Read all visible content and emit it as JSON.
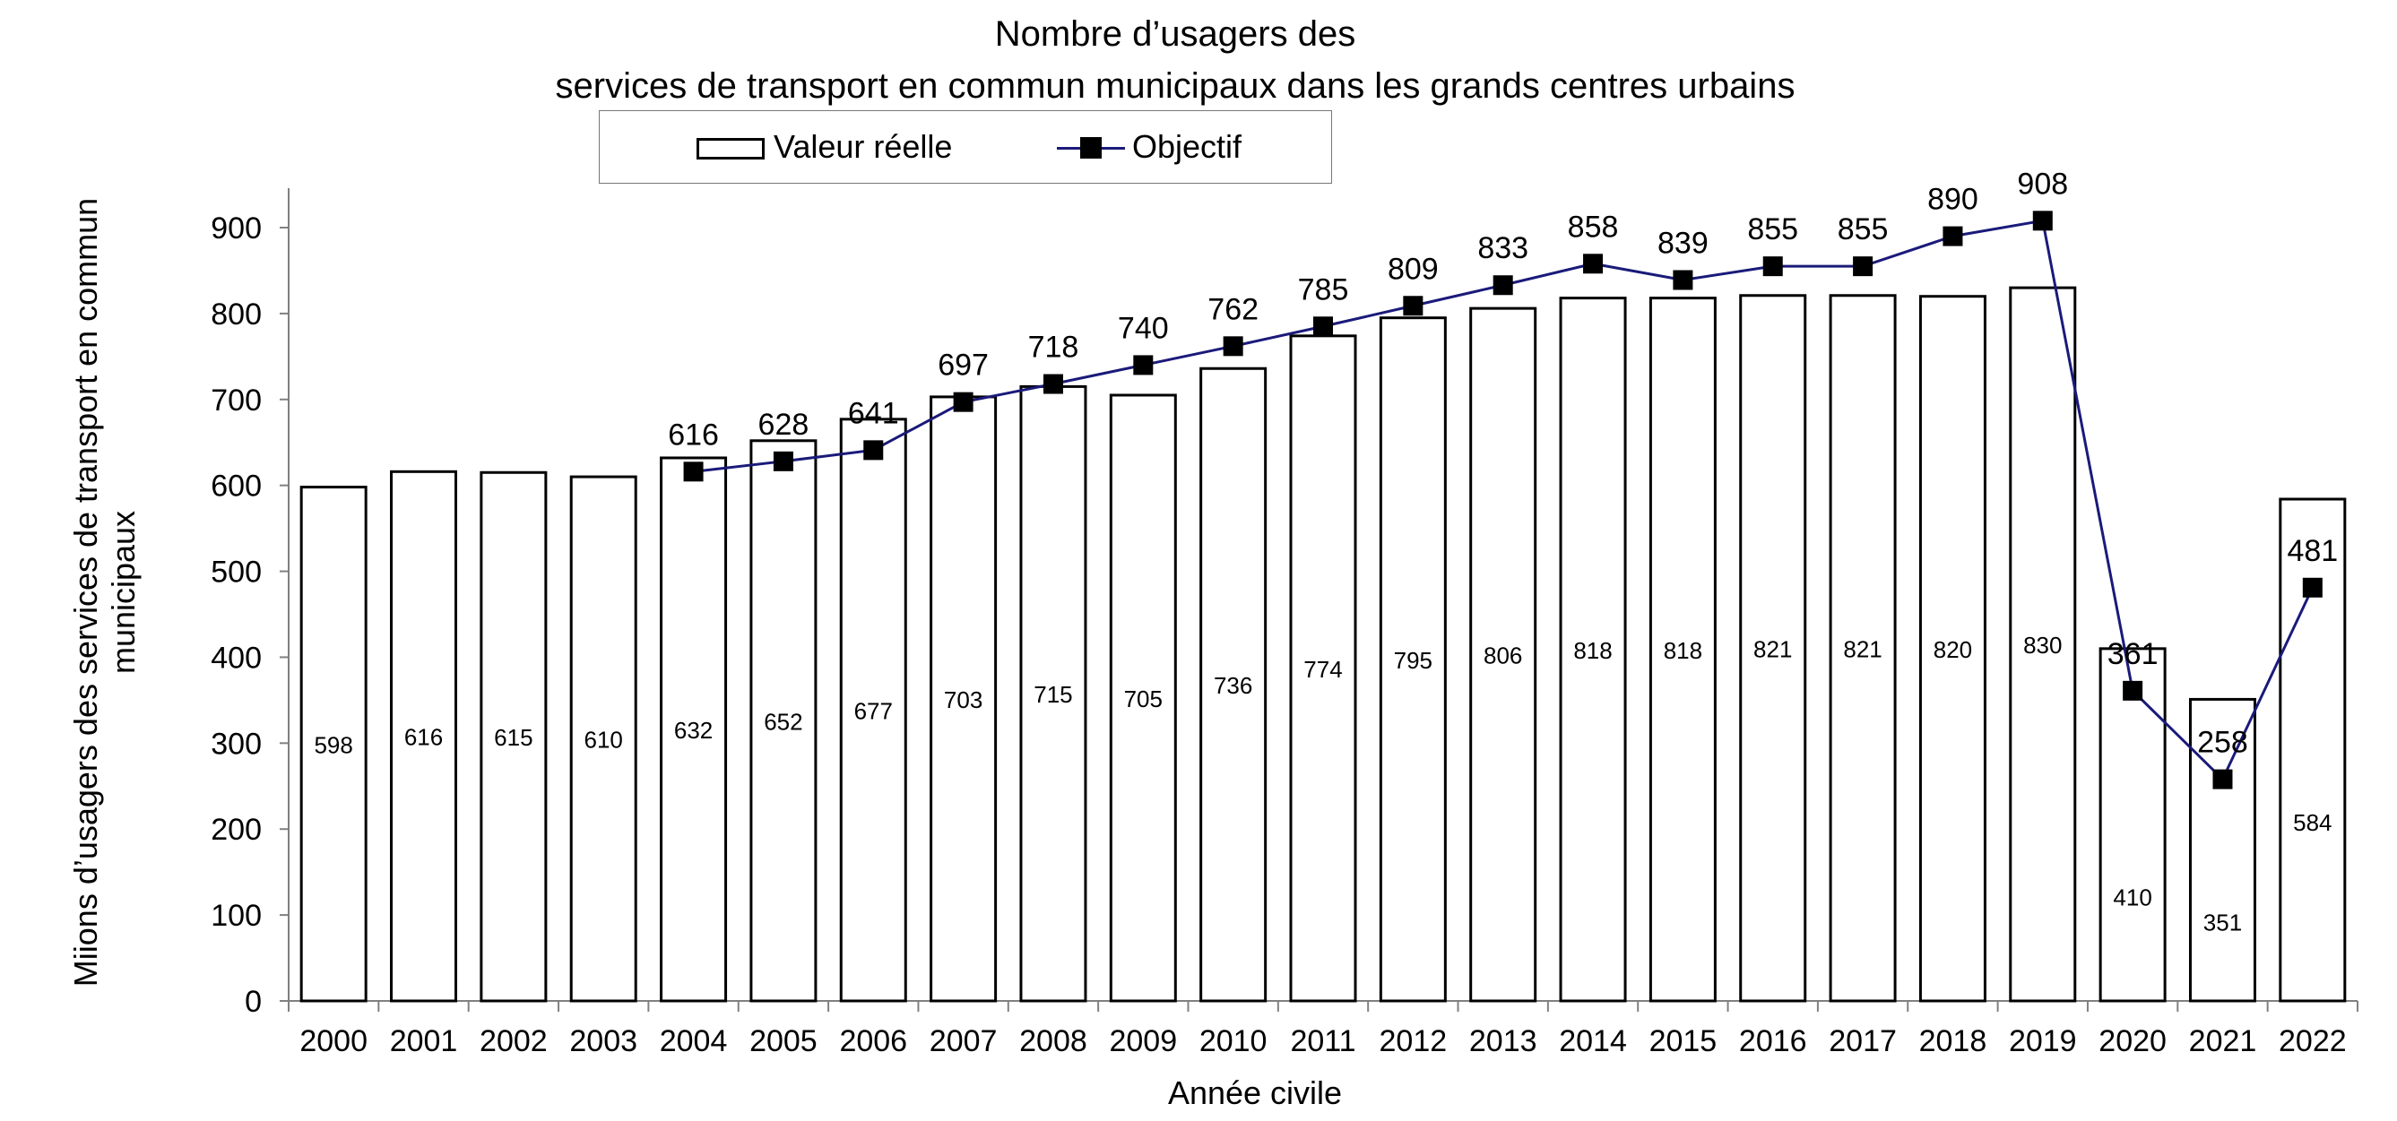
{
  "chart_data": {
    "type": "bar",
    "title_line1": "Nombre d’usagers des",
    "title_line2": "services de transport en commun municipaux dans les grands centres urbains",
    "xlabel": "Année civile",
    "ylabel_line1": "Miions d’usagers des services de transport  en commun",
    "ylabel_line2": "municipaux",
    "ylim": [
      0,
      950
    ],
    "yticks": [
      0,
      100,
      200,
      300,
      400,
      500,
      600,
      700,
      800,
      900
    ],
    "grid": false,
    "legend_placement": "top-center",
    "categories": [
      "2000",
      "2001",
      "2002",
      "2003",
      "2004",
      "2005",
      "2006",
      "2007",
      "2008",
      "2009",
      "2010",
      "2011",
      "2012",
      "2013",
      "2014",
      "2015",
      "2016",
      "2017",
      "2018",
      "2019",
      "2020",
      "2021",
      "2022"
    ],
    "series": [
      {
        "name": "Valeur réelle",
        "kind": "bar",
        "values": [
          598,
          616,
          615,
          610,
          632,
          652,
          677,
          703,
          715,
          705,
          736,
          774,
          795,
          806,
          818,
          818,
          821,
          821,
          820,
          830,
          410,
          351,
          584
        ]
      },
      {
        "name": "Objectif",
        "kind": "line",
        "values": [
          null,
          null,
          null,
          null,
          616,
          628,
          641,
          697,
          718,
          740,
          762,
          785,
          809,
          833,
          858,
          839,
          855,
          855,
          890,
          908,
          361,
          258,
          481
        ]
      }
    ],
    "colors": {
      "bar_fill": "#ffffff",
      "bar_stroke": "#000000",
      "line": "#1a1a7a",
      "marker": "#000000"
    }
  }
}
